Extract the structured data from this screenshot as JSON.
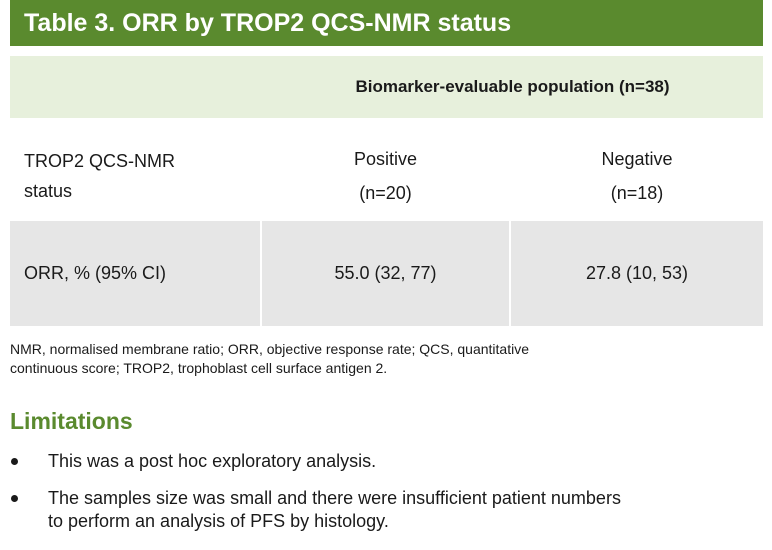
{
  "title": "Table 3. ORR by TROP2 QCS-NMR status",
  "table": {
    "population_header": "Biomarker-evaluable population (n=38)",
    "row_status": {
      "label_lines": [
        "TROP2 QCS-NMR",
        "status"
      ],
      "positive": {
        "label": "Positive",
        "n": "(n=20)"
      },
      "negative": {
        "label": "Negative",
        "n": "(n=18)"
      }
    },
    "row_orr": {
      "label": "ORR, % (95% CI)",
      "positive_value": "55.0 (32, 77)",
      "negative_value": "27.8 (10, 53)"
    }
  },
  "footnote_lines": [
    "NMR, normalised membrane ratio; ORR, objective response rate; QCS, quantitative",
    "continuous score; TROP2, trophoblast cell surface antigen 2."
  ],
  "limitations": {
    "heading": "Limitations",
    "bullets": [
      {
        "lines": [
          "This was a post hoc exploratory analysis."
        ]
      },
      {
        "lines": [
          "The samples size was small and there were insufficient patient numbers",
          "to perform an analysis of PFS by histology."
        ]
      }
    ]
  },
  "colors": {
    "title_bg": "#5a8a2e",
    "header_row_bg": "#e7f0dc",
    "orr_row_bg": "#e6e6e6",
    "heading_green": "#5a8a2e"
  }
}
